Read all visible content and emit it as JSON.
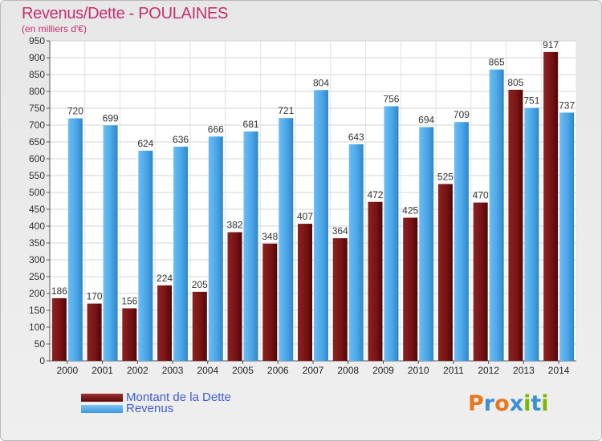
{
  "title": "Revenus/Dette - POULAINES",
  "subtitle": "(en milliers d'€)",
  "legend": [
    {
      "label": "Montant de la Dette",
      "color": "#7a1414"
    },
    {
      "label": "Revenus",
      "color": "#4aa6e8"
    }
  ],
  "logo": {
    "text": "Proxiti",
    "letters": [
      "P",
      "r",
      "o",
      "x",
      "i",
      "t",
      "i"
    ],
    "colors": [
      "#e8781e",
      "#3a8fd6",
      "#e8781e",
      "#3a8fd6",
      "#7ab800",
      "#3a8fd6",
      "#7ab800"
    ]
  },
  "chart_data": {
    "type": "bar",
    "categories": [
      "2000",
      "2001",
      "2002",
      "2003",
      "2004",
      "2005",
      "2006",
      "2007",
      "2008",
      "2009",
      "2010",
      "2011",
      "2012",
      "2013",
      "2014"
    ],
    "series": [
      {
        "name": "Montant de la Dette",
        "color": "#7a1414",
        "values": [
          186,
          170,
          156,
          224,
          205,
          382,
          348,
          407,
          364,
          472,
          425,
          525,
          470,
          805,
          917
        ]
      },
      {
        "name": "Revenus",
        "color": "#4aa6e8",
        "values": [
          720,
          699,
          624,
          636,
          666,
          681,
          721,
          804,
          643,
          756,
          694,
          709,
          865,
          751,
          737
        ]
      }
    ],
    "ylim": [
      0,
      950
    ],
    "yticks": [
      0,
      50,
      100,
      150,
      200,
      250,
      300,
      350,
      400,
      450,
      500,
      550,
      600,
      650,
      700,
      750,
      800,
      850,
      900,
      950
    ],
    "grid": true,
    "legend_position": "bottom-left"
  }
}
